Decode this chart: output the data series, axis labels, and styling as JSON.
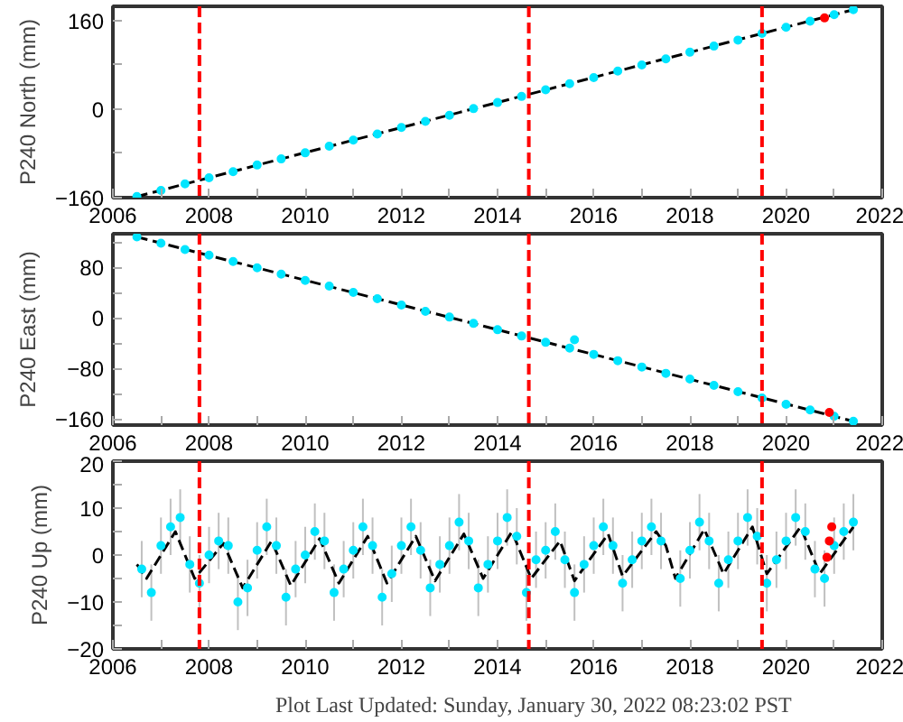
{
  "chart_data": [
    {
      "type": "scatter",
      "ylabel": "P240 North (mm)",
      "xlim": [
        2006,
        2022
      ],
      "ylim": [
        -160,
        186
      ],
      "xticks": [
        2006,
        {
          "value": 2007,
          "label": null
        },
        2008,
        {
          "value": 2009,
          "label": null
        },
        2010,
        {
          "value": 2011,
          "label": null
        },
        2012,
        {
          "value": 2013,
          "label": null
        },
        2014,
        {
          "value": 2015,
          "label": null
        },
        2016,
        {
          "value": 2017,
          "label": null
        },
        2018,
        {
          "value": 2019,
          "label": null
        },
        2020,
        {
          "value": 2021,
          "label": null
        },
        2022
      ],
      "yticks": [
        -160,
        {
          "value": -80,
          "label": null
        },
        0,
        {
          "value": 80,
          "label": null
        },
        160
      ],
      "grid": false,
      "ref_lines": [
        {
          "axis": "x",
          "value": 2007.8,
          "color": "#ff0000",
          "line_style": "dashed"
        },
        {
          "axis": "x",
          "value": 2014.65,
          "color": "#ff0000",
          "line_style": "dashed"
        },
        {
          "axis": "x",
          "value": 2019.5,
          "color": "#ff0000",
          "line_style": "dashed"
        }
      ],
      "series": [
        {
          "marker": "circle",
          "color": "#00e5ff",
          "x": [
            2006.5,
            2007.0,
            2007.5,
            2008.0,
            2008.5,
            2009.0,
            2009.5,
            2010.0,
            2010.5,
            2011.0,
            2011.5,
            2012.0,
            2012.5,
            2013.0,
            2013.5,
            2014.0,
            2014.5,
            2015.0,
            2015.5,
            2016.0,
            2016.5,
            2017.0,
            2017.5,
            2018.0,
            2018.5,
            2019.0,
            2019.5,
            2020.0,
            2020.5,
            2021.0,
            2021.4
          ],
          "values": [
            -158,
            -147,
            -135,
            -124,
            -113,
            -101,
            -90,
            -79,
            -67,
            -56,
            -45,
            -33,
            -22,
            -11,
            1,
            12,
            23,
            35,
            46,
            57,
            69,
            80,
            91,
            103,
            114,
            125,
            137,
            148,
            159,
            171,
            180
          ]
        },
        {
          "type": "line",
          "marker": "none",
          "color": "#000000",
          "line_style": "dashed",
          "x": [
            2006.5,
            2021.4
          ],
          "values": [
            -158,
            180
          ]
        },
        {
          "marker": "circle",
          "color": "#ff0000",
          "x": [
            2020.8
          ],
          "values": [
            165
          ]
        }
      ]
    },
    {
      "type": "scatter",
      "ylabel": "P240 East (mm)",
      "xlim": [
        2006,
        2022
      ],
      "ylim": [
        -170,
        133
      ],
      "xticks": [
        2006,
        {
          "value": 2007,
          "label": null
        },
        2008,
        {
          "value": 2009,
          "label": null
        },
        2010,
        {
          "value": 2011,
          "label": null
        },
        2012,
        {
          "value": 2013,
          "label": null
        },
        2014,
        {
          "value": 2015,
          "label": null
        },
        2016,
        {
          "value": 2017,
          "label": null
        },
        2018,
        {
          "value": 2019,
          "label": null
        },
        2020,
        {
          "value": 2021,
          "label": null
        },
        2022
      ],
      "yticks": [
        -160,
        {
          "value": -120,
          "label": null
        },
        -80,
        {
          "value": -40,
          "label": null
        },
        0,
        {
          "value": 40,
          "label": null
        },
        80,
        {
          "value": 120,
          "label": null
        }
      ],
      "grid": false,
      "ref_lines": [
        {
          "axis": "x",
          "value": 2007.8,
          "color": "#ff0000",
          "line_style": "dashed"
        },
        {
          "axis": "x",
          "value": 2014.65,
          "color": "#ff0000",
          "line_style": "dashed"
        },
        {
          "axis": "x",
          "value": 2019.5,
          "color": "#ff0000",
          "line_style": "dashed"
        }
      ],
      "series": [
        {
          "marker": "circle",
          "color": "#00e5ff",
          "x": [
            2006.5,
            2007.0,
            2007.5,
            2008.0,
            2008.5,
            2009.0,
            2009.5,
            2010.0,
            2010.5,
            2011.0,
            2011.5,
            2012.0,
            2012.5,
            2013.0,
            2013.5,
            2014.0,
            2014.5,
            2015.0,
            2015.5,
            2015.6,
            2016.0,
            2016.5,
            2017.0,
            2017.5,
            2018.0,
            2018.5,
            2019.0,
            2019.5,
            2020.0,
            2020.5,
            2021.0,
            2021.4
          ],
          "values": [
            128,
            118,
            108,
            99,
            89,
            79,
            69,
            59,
            50,
            40,
            30,
            20,
            10,
            1,
            -9,
            -19,
            -29,
            -39,
            -48,
            -35,
            -58,
            -68,
            -78,
            -88,
            -97,
            -107,
            -117,
            -127,
            -137,
            -146,
            -156,
            -164
          ]
        },
        {
          "type": "line",
          "marker": "none",
          "color": "#000000",
          "line_style": "dashed",
          "x": [
            2006.5,
            2021.4
          ],
          "values": [
            128,
            -164
          ]
        },
        {
          "marker": "circle",
          "color": "#ff0000",
          "x": [
            2020.9
          ],
          "values": [
            -150
          ]
        }
      ]
    },
    {
      "type": "scatter",
      "ylabel": "P240 Up (mm)",
      "xlim": [
        2006,
        2022
      ],
      "ylim": [
        -20,
        20
      ],
      "xticks": [
        2006,
        {
          "value": 2007,
          "label": null
        },
        2008,
        {
          "value": 2009,
          "label": null
        },
        2010,
        {
          "value": 2011,
          "label": null
        },
        2012,
        {
          "value": 2013,
          "label": null
        },
        2014,
        {
          "value": 2015,
          "label": null
        },
        2016,
        {
          "value": 2017,
          "label": null
        },
        2018,
        {
          "value": 2019,
          "label": null
        },
        2020,
        {
          "value": 2021,
          "label": null
        },
        2022
      ],
      "yticks": [
        -20,
        {
          "value": -15,
          "label": null
        },
        -10,
        {
          "value": -5,
          "label": null
        },
        0,
        {
          "value": 5,
          "label": null
        },
        10,
        {
          "value": 15,
          "label": null
        },
        20
      ],
      "grid": false,
      "annotations": [
        "Plot Last Updated:   Sunday, January 30, 2022 08:23:02 PST"
      ],
      "ref_lines": [
        {
          "axis": "x",
          "value": 2007.8,
          "color": "#ff0000",
          "line_style": "dashed"
        },
        {
          "axis": "x",
          "value": 2014.65,
          "color": "#ff0000",
          "line_style": "dashed"
        },
        {
          "axis": "x",
          "value": 2019.5,
          "color": "#ff0000",
          "line_style": "dashed"
        }
      ],
      "series": [
        {
          "marker": "circle",
          "color": "#00e5ff",
          "x": [
            2006.6,
            2006.8,
            2007.0,
            2007.2,
            2007.4,
            2007.6,
            2007.8,
            2008.0,
            2008.2,
            2008.4,
            2008.6,
            2008.8,
            2009.0,
            2009.2,
            2009.4,
            2009.6,
            2009.8,
            2010.0,
            2010.2,
            2010.4,
            2010.6,
            2010.8,
            2011.0,
            2011.2,
            2011.4,
            2011.6,
            2011.8,
            2012.0,
            2012.2,
            2012.4,
            2012.6,
            2012.8,
            2013.0,
            2013.2,
            2013.4,
            2013.6,
            2013.8,
            2014.0,
            2014.2,
            2014.4,
            2014.6,
            2014.8,
            2015.0,
            2015.2,
            2015.4,
            2015.6,
            2015.8,
            2016.0,
            2016.2,
            2016.4,
            2016.6,
            2016.8,
            2017.0,
            2017.2,
            2017.4,
            2017.8,
            2018.0,
            2018.2,
            2018.4,
            2018.6,
            2018.8,
            2019.0,
            2019.2,
            2019.4,
            2019.6,
            2019.8,
            2020.0,
            2020.2,
            2020.4,
            2020.6,
            2020.8,
            2021.0,
            2021.2,
            2021.4
          ],
          "values": [
            -3,
            -8,
            2,
            6,
            8,
            -2,
            -6,
            0,
            3,
            2,
            -10,
            -7,
            1,
            6,
            2,
            -9,
            -3,
            0,
            5,
            3,
            -8,
            -3,
            1,
            6,
            2,
            -9,
            -4,
            2,
            6,
            1,
            -7,
            -2,
            2,
            7,
            3,
            -7,
            -2,
            3,
            8,
            4,
            -8,
            -1,
            1,
            5,
            -1,
            -8,
            -2,
            2,
            6,
            2,
            -6,
            -1,
            3,
            6,
            3,
            -5,
            1,
            7,
            3,
            -6,
            -1,
            3,
            8,
            4,
            -6,
            -1,
            3,
            8,
            5,
            -3,
            -5,
            2,
            5,
            7
          ],
          "errors": [
            6,
            6,
            6,
            6,
            6,
            6,
            6,
            6,
            6,
            6,
            6,
            6,
            6,
            6,
            6,
            6,
            6,
            6,
            6,
            6,
            6,
            6,
            6,
            6,
            6,
            6,
            6,
            6,
            6,
            6,
            6,
            6,
            6,
            6,
            6,
            6,
            6,
            6,
            6,
            6,
            6,
            6,
            6,
            6,
            6,
            6,
            6,
            6,
            6,
            6,
            6,
            6,
            6,
            6,
            6,
            6,
            6,
            6,
            6,
            6,
            6,
            6,
            6,
            6,
            6,
            6,
            6,
            6,
            6,
            6,
            6,
            6,
            6,
            6
          ]
        },
        {
          "type": "line",
          "marker": "none",
          "color": "#000000",
          "line_style": "dashed",
          "x": [
            2006.5,
            2006.7,
            2007.3,
            2007.7,
            2008.3,
            2008.7,
            2009.3,
            2009.7,
            2010.3,
            2010.7,
            2011.3,
            2011.7,
            2012.3,
            2012.7,
            2013.3,
            2013.7,
            2014.3,
            2014.7,
            2015.3,
            2015.6,
            2016.3,
            2016.6,
            2017.3,
            2017.5,
            2017.7,
            2018.3,
            2018.7,
            2019.3,
            2019.6,
            2020.3,
            2020.7,
            2021.4
          ],
          "values": [
            -2,
            -5,
            5,
            -5,
            2.5,
            -7,
            3,
            -6.5,
            3.5,
            -6,
            4,
            -6,
            4,
            -5.5,
            4.5,
            -5,
            5,
            -5,
            3,
            -5.5,
            4.5,
            -4.5,
            5,
            2,
            -5,
            5.5,
            -4,
            6,
            -4,
            6,
            -4,
            6
          ]
        },
        {
          "marker": "circle",
          "color": "#ff0000",
          "x": [
            2020.85,
            2020.9,
            2020.95
          ],
          "values": [
            -0.5,
            3,
            6
          ]
        }
      ]
    }
  ]
}
